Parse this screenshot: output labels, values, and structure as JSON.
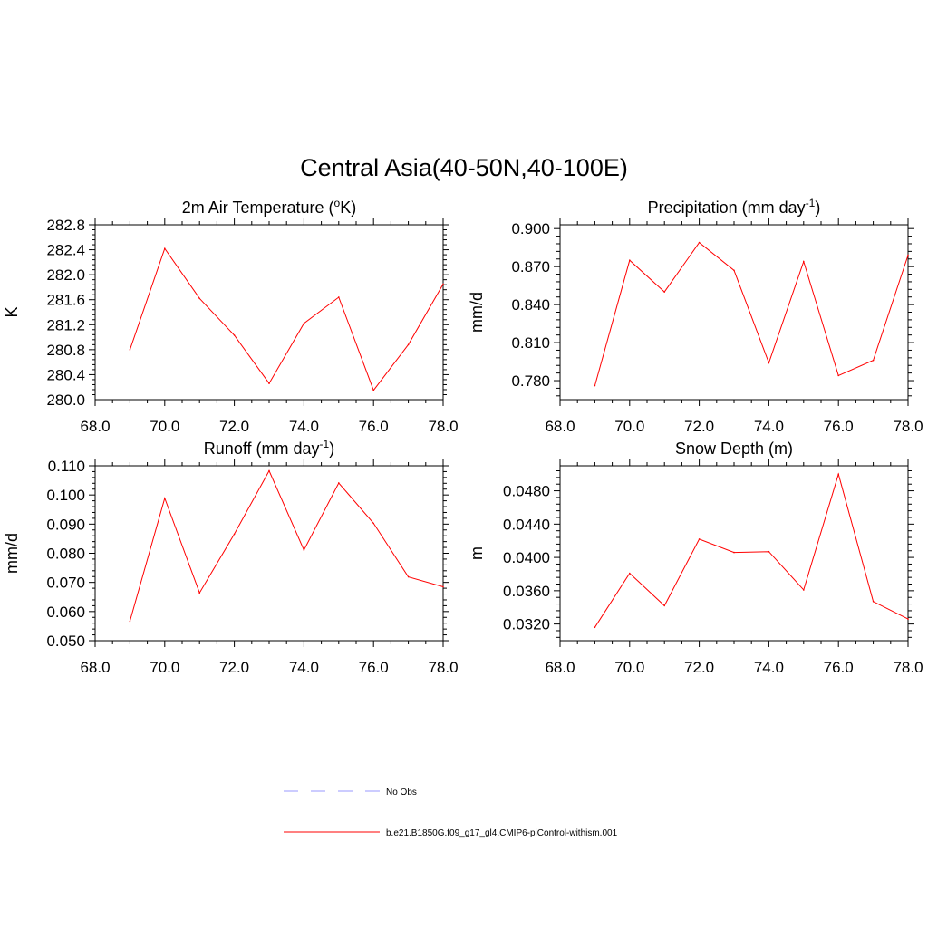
{
  "figure": {
    "title": "Central Asia(40-50N,40-100E)"
  },
  "chart_data": [
    {
      "type": "line",
      "title": "2m Air Temperature (",
      "title_sup": "o",
      "title_tail": "K)",
      "xlabel": "",
      "ylabel": "K",
      "xlim": [
        68,
        78
      ],
      "ylim": [
        280.0,
        282.8
      ],
      "xticks": [
        "68.0",
        "70.0",
        "72.0",
        "74.0",
        "76.0",
        "78.0"
      ],
      "xtick_values": [
        68,
        70,
        72,
        74,
        76,
        78
      ],
      "yticks": [
        "280.0",
        "280.4",
        "280.8",
        "281.2",
        "281.6",
        "282.0",
        "282.4",
        "282.8"
      ],
      "ytick_values": [
        280.0,
        280.4,
        280.8,
        281.2,
        281.6,
        282.0,
        282.4,
        282.8
      ],
      "series": [
        {
          "name": "b.e21.B1850G.f09_g17_gl4.CMIP6-piControl-withism.001",
          "color": "#ff0000",
          "x": [
            69,
            70,
            71,
            72,
            73,
            74,
            75,
            76,
            77,
            78
          ],
          "values": [
            280.8,
            282.42,
            281.62,
            281.03,
            280.26,
            281.22,
            281.64,
            280.15,
            280.88,
            281.85
          ]
        }
      ]
    },
    {
      "type": "line",
      "title": "Precipitation (mm day",
      "title_sup": "-1",
      "title_tail": ")",
      "xlabel": "",
      "ylabel": "mm/d",
      "xlim": [
        68,
        78
      ],
      "ylim": [
        0.765,
        0.903
      ],
      "xticks": [
        "68.0",
        "70.0",
        "72.0",
        "74.0",
        "76.0",
        "78.0"
      ],
      "xtick_values": [
        68,
        70,
        72,
        74,
        76,
        78
      ],
      "yticks": [
        "0.780",
        "0.810",
        "0.840",
        "0.870",
        "0.900"
      ],
      "ytick_values": [
        0.78,
        0.81,
        0.84,
        0.87,
        0.9
      ],
      "series": [
        {
          "name": "b.e21.B1850G.f09_g17_gl4.CMIP6-piControl-withism.001",
          "color": "#ff0000",
          "x": [
            69,
            70,
            71,
            72,
            73,
            74,
            75,
            76,
            77,
            78
          ],
          "values": [
            0.776,
            0.875,
            0.85,
            0.889,
            0.867,
            0.794,
            0.874,
            0.784,
            0.796,
            0.879
          ]
        }
      ]
    },
    {
      "type": "line",
      "title": "Runoff (mm day",
      "title_sup": "-1",
      "title_tail": ")",
      "xlabel": "",
      "ylabel": "mm/d",
      "xlim": [
        68,
        78
      ],
      "ylim": [
        0.05,
        0.11
      ],
      "xticks": [
        "68.0",
        "70.0",
        "72.0",
        "74.0",
        "76.0",
        "78.0"
      ],
      "xtick_values": [
        68,
        70,
        72,
        74,
        76,
        78
      ],
      "yticks": [
        "0.050",
        "0.060",
        "0.070",
        "0.080",
        "0.090",
        "0.100",
        "0.110"
      ],
      "ytick_values": [
        0.05,
        0.06,
        0.07,
        0.08,
        0.09,
        0.1,
        0.11
      ],
      "series": [
        {
          "name": "b.e21.B1850G.f09_g17_gl4.CMIP6-piControl-withism.001",
          "color": "#ff0000",
          "x": [
            69,
            70,
            71,
            72,
            73,
            74,
            75,
            76,
            77,
            78
          ],
          "values": [
            0.0567,
            0.0989,
            0.0664,
            0.0866,
            0.1083,
            0.0811,
            0.1041,
            0.0903,
            0.0719,
            0.0685
          ]
        }
      ]
    },
    {
      "type": "line",
      "title": "Snow Depth (m)",
      "title_sup": "",
      "title_tail": "",
      "xlabel": "",
      "ylabel": "m",
      "xlim": [
        68,
        78
      ],
      "ylim": [
        0.03,
        0.051
      ],
      "xticks": [
        "68.0",
        "70.0",
        "72.0",
        "74.0",
        "76.0",
        "78.0"
      ],
      "xtick_values": [
        68,
        70,
        72,
        74,
        76,
        78
      ],
      "yticks": [
        "0.0320",
        "0.0360",
        "0.0400",
        "0.0440",
        "0.0480"
      ],
      "ytick_values": [
        0.032,
        0.036,
        0.04,
        0.044,
        0.048
      ],
      "series": [
        {
          "name": "b.e21.B1850G.f09_g17_gl4.CMIP6-piControl-withism.001",
          "color": "#ff0000",
          "x": [
            69,
            70,
            71,
            72,
            73,
            74,
            75,
            76,
            77,
            78
          ],
          "values": [
            0.0316,
            0.0381,
            0.0342,
            0.0422,
            0.0406,
            0.0407,
            0.0361,
            0.05,
            0.0347,
            0.0326
          ]
        }
      ]
    }
  ],
  "legend": {
    "items": [
      {
        "label": "No Obs",
        "color": "#9999ff",
        "style": "dashed"
      },
      {
        "label": "b.e21.B1850G.f09_g17_gl4.CMIP6-piControl-withism.001",
        "color": "#ff0000",
        "style": "solid"
      }
    ]
  }
}
